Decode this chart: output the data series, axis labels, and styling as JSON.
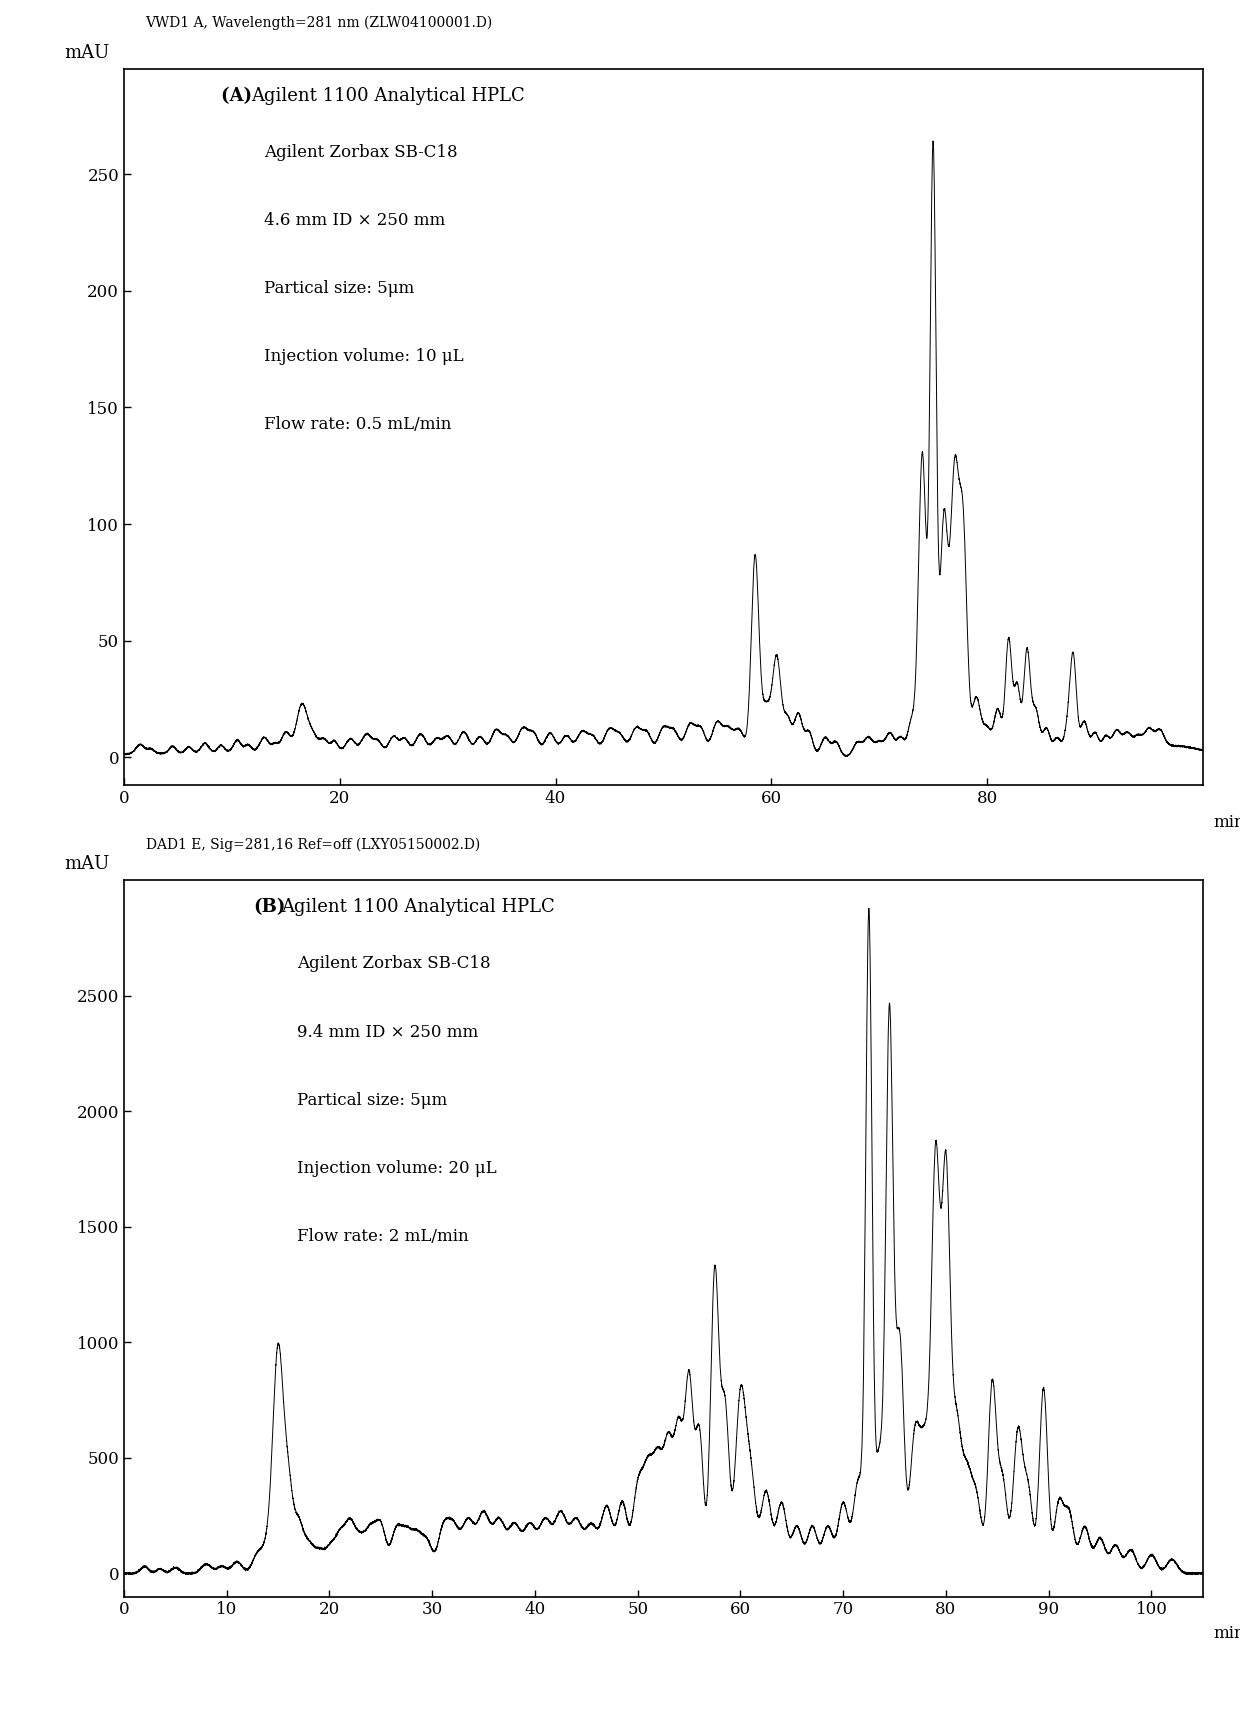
{
  "panel_A": {
    "header": "VWD1 A, Wavelength=281 nm (ZLW04100001.D)",
    "label_bold": "(A) ",
    "label_rest": "Agilent 1100 Analytical HPLC",
    "annotation_lines": [
      "Agilent Zorbax SB-C18",
      "4.6 mm ID × 250 mm",
      "Partical size: 5μm",
      "Injection volume: 10 μL",
      "Flow rate: 0.5 mL/min"
    ],
    "ylabel": "mAU",
    "xlabel": "min",
    "xlim": [
      0,
      100
    ],
    "ylim": [
      -12,
      295
    ],
    "yticks": [
      0,
      50,
      100,
      150,
      200,
      250
    ],
    "xticks": [
      0,
      20,
      40,
      60,
      80
    ]
  },
  "panel_B": {
    "header": "DAD1 E, Sig=281,16 Ref=off (LXY05150002.D)",
    "label_bold": "(B)",
    "label_rest": "Agilent 1100 Analytical HPLC",
    "annotation_lines": [
      "Agilent Zorbax SB-C18",
      "9.4 mm ID × 250 mm",
      "Partical size: 5μm",
      "Injection volume: 20 μL",
      "Flow rate: 2 mL/min"
    ],
    "ylabel": "mAU",
    "xlabel": "min",
    "xlim": [
      0,
      105
    ],
    "ylim": [
      -100,
      3000
    ],
    "yticks": [
      0,
      500,
      1000,
      1500,
      2000,
      2500
    ],
    "xticks": [
      0,
      10,
      20,
      30,
      40,
      50,
      60,
      70,
      80,
      90,
      100
    ]
  },
  "line_color": "#000000",
  "background_color": "#ffffff",
  "line_width": 0.7
}
